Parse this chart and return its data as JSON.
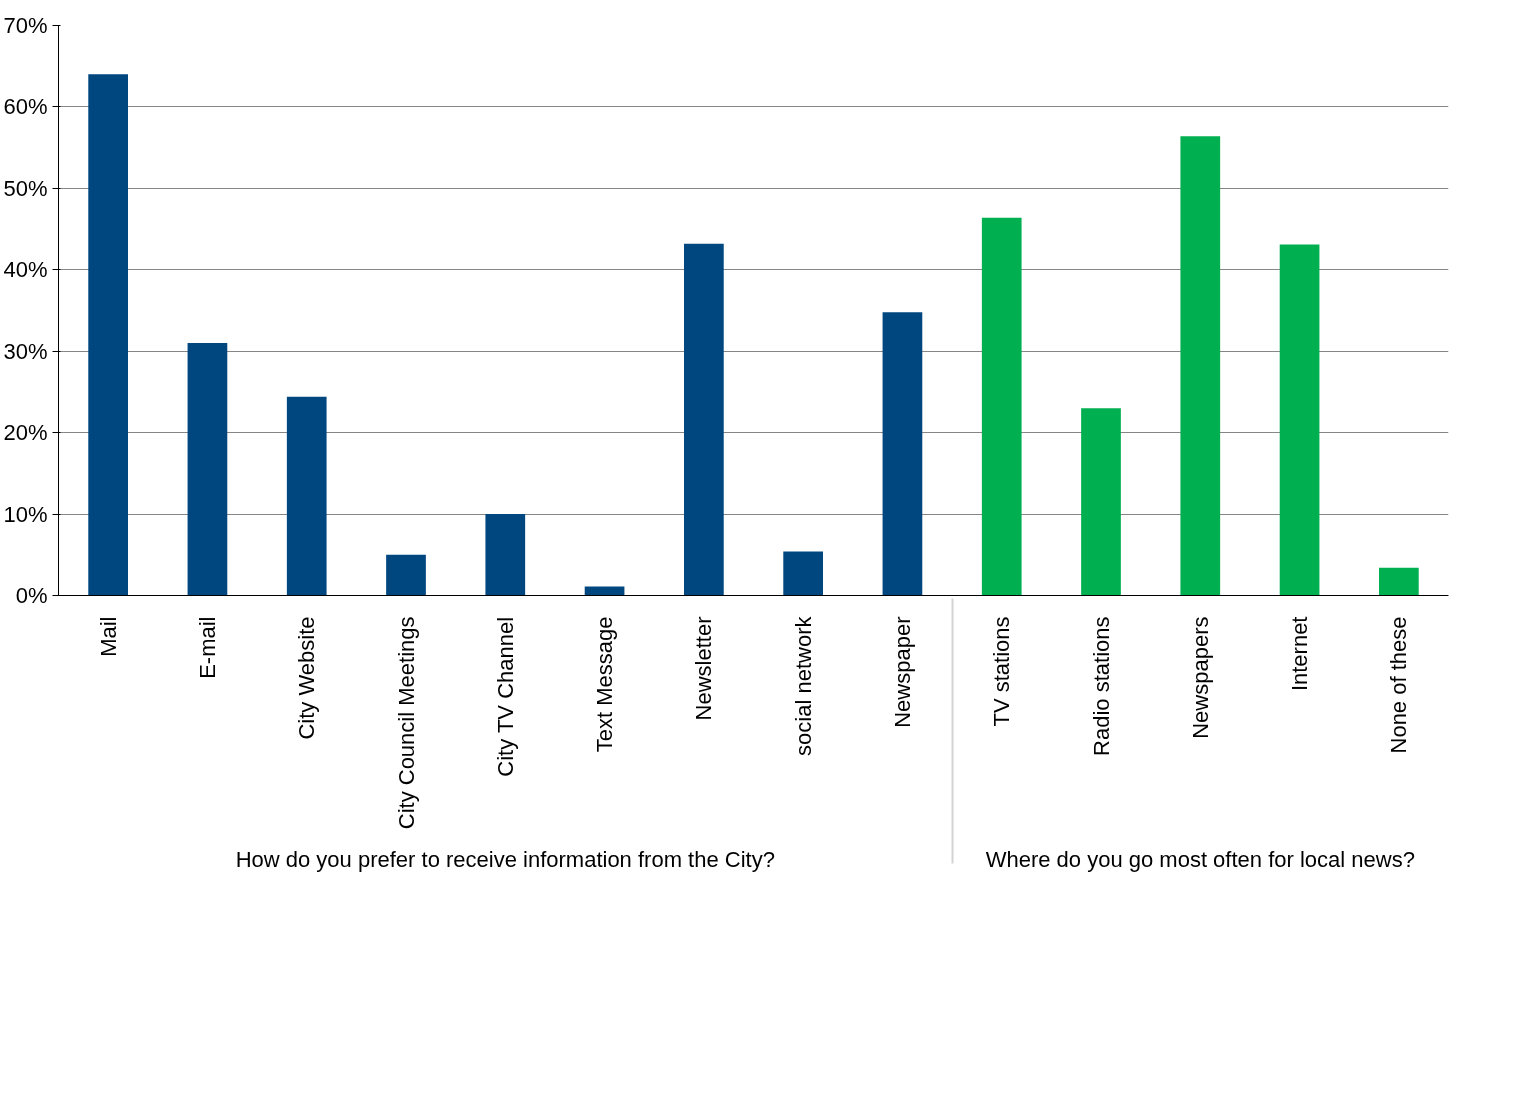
{
  "chart_data": {
    "type": "bar",
    "categories": [
      "Mail",
      "E-mail",
      "City Website",
      "City Council Meetings",
      "City TV Channel",
      "Text Message",
      "Newsletter",
      "social network",
      "Newspaper",
      "TV stations",
      "Radio stations",
      "Newspapers",
      "Internet",
      "None of these"
    ],
    "series": [
      {
        "color": "#00467f",
        "values": [
          64,
          31,
          24.4,
          5,
          10,
          1.1,
          43.2,
          5.4,
          34.8,
          null,
          null,
          null,
          null,
          null
        ]
      },
      {
        "color": "#00b050",
        "values": [
          null,
          null,
          null,
          null,
          null,
          null,
          null,
          null,
          null,
          46.4,
          23,
          56.4,
          43.1,
          3.4
        ]
      }
    ],
    "ylim": [
      0,
      70
    ],
    "yticks": [
      {
        "value": 0,
        "label": "0%"
      },
      {
        "value": 10,
        "label": "10%"
      },
      {
        "value": 20,
        "label": "20%"
      },
      {
        "value": 30,
        "label": "30%"
      },
      {
        "value": 40,
        "label": "40%"
      },
      {
        "value": 50,
        "label": "50%"
      },
      {
        "value": 60,
        "label": "60%"
      },
      {
        "value": 70,
        "label": "70%"
      }
    ],
    "annotations": [
      "How do you prefer to receive information from the City?",
      "Where do you go most often for local news?"
    ],
    "grid": "y"
  }
}
